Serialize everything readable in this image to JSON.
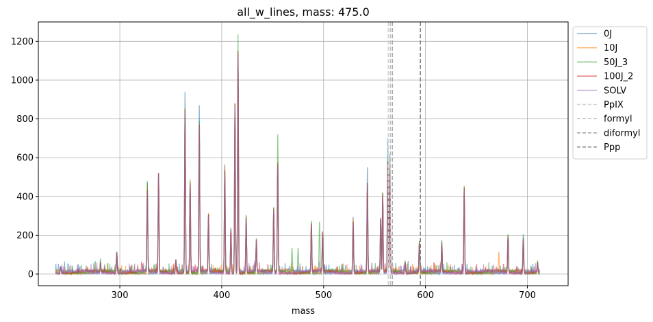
{
  "chart_data": {
    "type": "line",
    "title": "all_w_lines, mass: 475.0",
    "xlabel": "mass",
    "ylabel": "",
    "xlim": [
      220,
      740
    ],
    "ylim": [
      -60,
      1300
    ],
    "x_range_data": [
      237,
      712
    ],
    "xticks": [
      300,
      400,
      500,
      600,
      700
    ],
    "yticks": [
      0,
      200,
      400,
      600,
      800,
      1000,
      1200
    ],
    "grid": true,
    "legend_position": "outside upper right",
    "series": [
      {
        "name": "0J",
        "color": "#1f77b4",
        "peaks": [
          [
            242,
            40
          ],
          [
            281,
            55
          ],
          [
            297,
            115
          ],
          [
            327,
            470
          ],
          [
            338,
            520
          ],
          [
            355,
            75
          ],
          [
            364,
            940
          ],
          [
            369,
            470
          ],
          [
            378,
            870
          ],
          [
            387,
            310
          ],
          [
            403,
            565
          ],
          [
            409,
            230
          ],
          [
            413,
            870
          ],
          [
            416,
            1150
          ],
          [
            424,
            290
          ],
          [
            434,
            175
          ],
          [
            451,
            340
          ],
          [
            455,
            560
          ],
          [
            488,
            260
          ],
          [
            499,
            220
          ],
          [
            529,
            295
          ],
          [
            543,
            550
          ],
          [
            556,
            290
          ],
          [
            558,
            420
          ],
          [
            563,
            700
          ],
          [
            565,
            620
          ],
          [
            580,
            60
          ],
          [
            594,
            160
          ],
          [
            616,
            175
          ],
          [
            638,
            450
          ],
          [
            681,
            200
          ],
          [
            696,
            205
          ],
          [
            710,
            60
          ]
        ]
      },
      {
        "name": "10J",
        "color": "#ff7f0e",
        "peaks": [
          [
            242,
            40
          ],
          [
            281,
            60
          ],
          [
            297,
            115
          ],
          [
            327,
            460
          ],
          [
            338,
            520
          ],
          [
            355,
            75
          ],
          [
            364,
            850
          ],
          [
            369,
            490
          ],
          [
            378,
            770
          ],
          [
            387,
            315
          ],
          [
            403,
            560
          ],
          [
            409,
            230
          ],
          [
            413,
            880
          ],
          [
            416,
            1140
          ],
          [
            424,
            300
          ],
          [
            434,
            180
          ],
          [
            451,
            340
          ],
          [
            455,
            580
          ],
          [
            488,
            265
          ],
          [
            499,
            220
          ],
          [
            529,
            290
          ],
          [
            543,
            470
          ],
          [
            556,
            290
          ],
          [
            558,
            420
          ],
          [
            563,
            580
          ],
          [
            565,
            560
          ],
          [
            580,
            65
          ],
          [
            594,
            170
          ],
          [
            616,
            160
          ],
          [
            638,
            455
          ],
          [
            672,
            115
          ],
          [
            681,
            200
          ],
          [
            696,
            170
          ],
          [
            710,
            65
          ]
        ]
      },
      {
        "name": "50J_3",
        "color": "#2ca02c",
        "peaks": [
          [
            242,
            40
          ],
          [
            281,
            80
          ],
          [
            297,
            115
          ],
          [
            327,
            480
          ],
          [
            338,
            520
          ],
          [
            355,
            75
          ],
          [
            364,
            855
          ],
          [
            369,
            480
          ],
          [
            378,
            790
          ],
          [
            387,
            310
          ],
          [
            403,
            535
          ],
          [
            409,
            240
          ],
          [
            413,
            880
          ],
          [
            416,
            1235
          ],
          [
            424,
            305
          ],
          [
            434,
            185
          ],
          [
            451,
            345
          ],
          [
            455,
            720
          ],
          [
            469,
            135
          ],
          [
            475,
            135
          ],
          [
            488,
            275
          ],
          [
            496,
            270
          ],
          [
            499,
            160
          ],
          [
            529,
            270
          ],
          [
            543,
            470
          ],
          [
            556,
            280
          ],
          [
            558,
            420
          ],
          [
            563,
            600
          ],
          [
            565,
            540
          ],
          [
            580,
            70
          ],
          [
            594,
            170
          ],
          [
            616,
            170
          ],
          [
            638,
            450
          ],
          [
            681,
            205
          ],
          [
            696,
            190
          ],
          [
            710,
            70
          ]
        ]
      },
      {
        "name": "100J_2",
        "color": "#d62728",
        "peaks": [
          [
            242,
            40
          ],
          [
            281,
            60
          ],
          [
            297,
            110
          ],
          [
            327,
            430
          ],
          [
            338,
            520
          ],
          [
            355,
            75
          ],
          [
            364,
            850
          ],
          [
            369,
            470
          ],
          [
            378,
            770
          ],
          [
            387,
            305
          ],
          [
            403,
            535
          ],
          [
            409,
            230
          ],
          [
            413,
            880
          ],
          [
            416,
            1150
          ],
          [
            424,
            290
          ],
          [
            434,
            175
          ],
          [
            451,
            335
          ],
          [
            455,
            570
          ],
          [
            488,
            260
          ],
          [
            499,
            215
          ],
          [
            529,
            270
          ],
          [
            543,
            470
          ],
          [
            556,
            285
          ],
          [
            558,
            410
          ],
          [
            563,
            580
          ],
          [
            565,
            520
          ],
          [
            580,
            60
          ],
          [
            594,
            165
          ],
          [
            616,
            155
          ],
          [
            638,
            440
          ],
          [
            681,
            190
          ],
          [
            696,
            180
          ],
          [
            710,
            60
          ]
        ]
      },
      {
        "name": "SOLV",
        "color": "#9467bd",
        "peaks": [
          [
            242,
            40
          ],
          [
            281,
            55
          ],
          [
            297,
            110
          ],
          [
            327,
            420
          ],
          [
            338,
            515
          ],
          [
            355,
            70
          ],
          [
            364,
            830
          ],
          [
            369,
            460
          ],
          [
            378,
            760
          ],
          [
            387,
            300
          ],
          [
            403,
            520
          ],
          [
            409,
            225
          ],
          [
            413,
            860
          ],
          [
            416,
            1120
          ],
          [
            424,
            285
          ],
          [
            434,
            170
          ],
          [
            451,
            330
          ],
          [
            455,
            560
          ],
          [
            488,
            255
          ],
          [
            499,
            210
          ],
          [
            529,
            265
          ],
          [
            543,
            460
          ],
          [
            556,
            280
          ],
          [
            558,
            405
          ],
          [
            563,
            570
          ],
          [
            565,
            510
          ],
          [
            580,
            55
          ],
          [
            594,
            160
          ],
          [
            616,
            150
          ],
          [
            638,
            430
          ],
          [
            681,
            185
          ],
          [
            696,
            175
          ],
          [
            710,
            55
          ]
        ]
      }
    ],
    "vlines": [
      {
        "name": "PpIX",
        "x": 563.5,
        "color": "#d3d3d3"
      },
      {
        "name": "formyl",
        "x": 565.5,
        "color": "#c0c0c0"
      },
      {
        "name": "diformyl",
        "x": 567.5,
        "color": "#a9a9a9"
      },
      {
        "name": "Ppp",
        "x": 595,
        "color": "#808080"
      }
    ]
  }
}
